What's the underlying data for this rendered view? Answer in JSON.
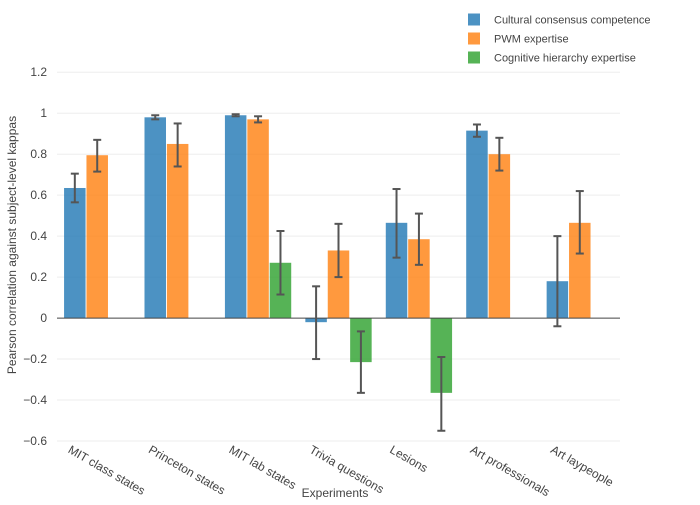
{
  "chart_data": {
    "type": "bar",
    "xlabel": "Experiments",
    "ylabel": "Pearson correlation against subject-level kappas",
    "ylim": [
      -0.6,
      1.25
    ],
    "yticks": [
      -0.6,
      -0.4,
      -0.2,
      0,
      0.2,
      0.4,
      0.6,
      0.8,
      1,
      1.2
    ],
    "ytick_labels": [
      "−0.6",
      "−0.4",
      "−0.2",
      "0",
      "0.2",
      "0.4",
      "0.6",
      "0.8",
      "1",
      "1.2"
    ],
    "grid": true,
    "legend_position": "top-right",
    "categories": [
      "MIT class states",
      "Princeton states",
      "MIT lab states",
      "Trivia questions",
      "Lesions",
      "Art professionals",
      "Art laypeople"
    ],
    "series": [
      {
        "name": "Cultural consensus competence",
        "color": "#1f77b4",
        "values": [
          0.635,
          0.98,
          0.99,
          -0.02,
          0.465,
          0.915,
          0.18
        ],
        "error_low": [
          0.565,
          0.97,
          0.985,
          -0.2,
          0.295,
          0.885,
          -0.04
        ],
        "error_high": [
          0.705,
          0.99,
          0.995,
          0.155,
          0.63,
          0.945,
          0.4
        ]
      },
      {
        "name": "PWM expertise",
        "color": "#ff7f0e",
        "values": [
          0.795,
          0.85,
          0.97,
          0.33,
          0.385,
          0.8,
          0.465
        ],
        "error_low": [
          0.715,
          0.74,
          0.955,
          0.2,
          0.26,
          0.72,
          0.315
        ],
        "error_high": [
          0.87,
          0.95,
          0.985,
          0.46,
          0.51,
          0.88,
          0.62
        ]
      },
      {
        "name": "Cognitive hierarchy expertise",
        "color": "#2ca02c",
        "values": [
          null,
          null,
          0.27,
          -0.215,
          -0.365,
          null,
          null
        ],
        "error_low": [
          null,
          null,
          0.115,
          -0.365,
          -0.55,
          null,
          null
        ],
        "error_high": [
          null,
          null,
          0.425,
          -0.065,
          -0.19,
          null,
          null
        ]
      }
    ]
  }
}
